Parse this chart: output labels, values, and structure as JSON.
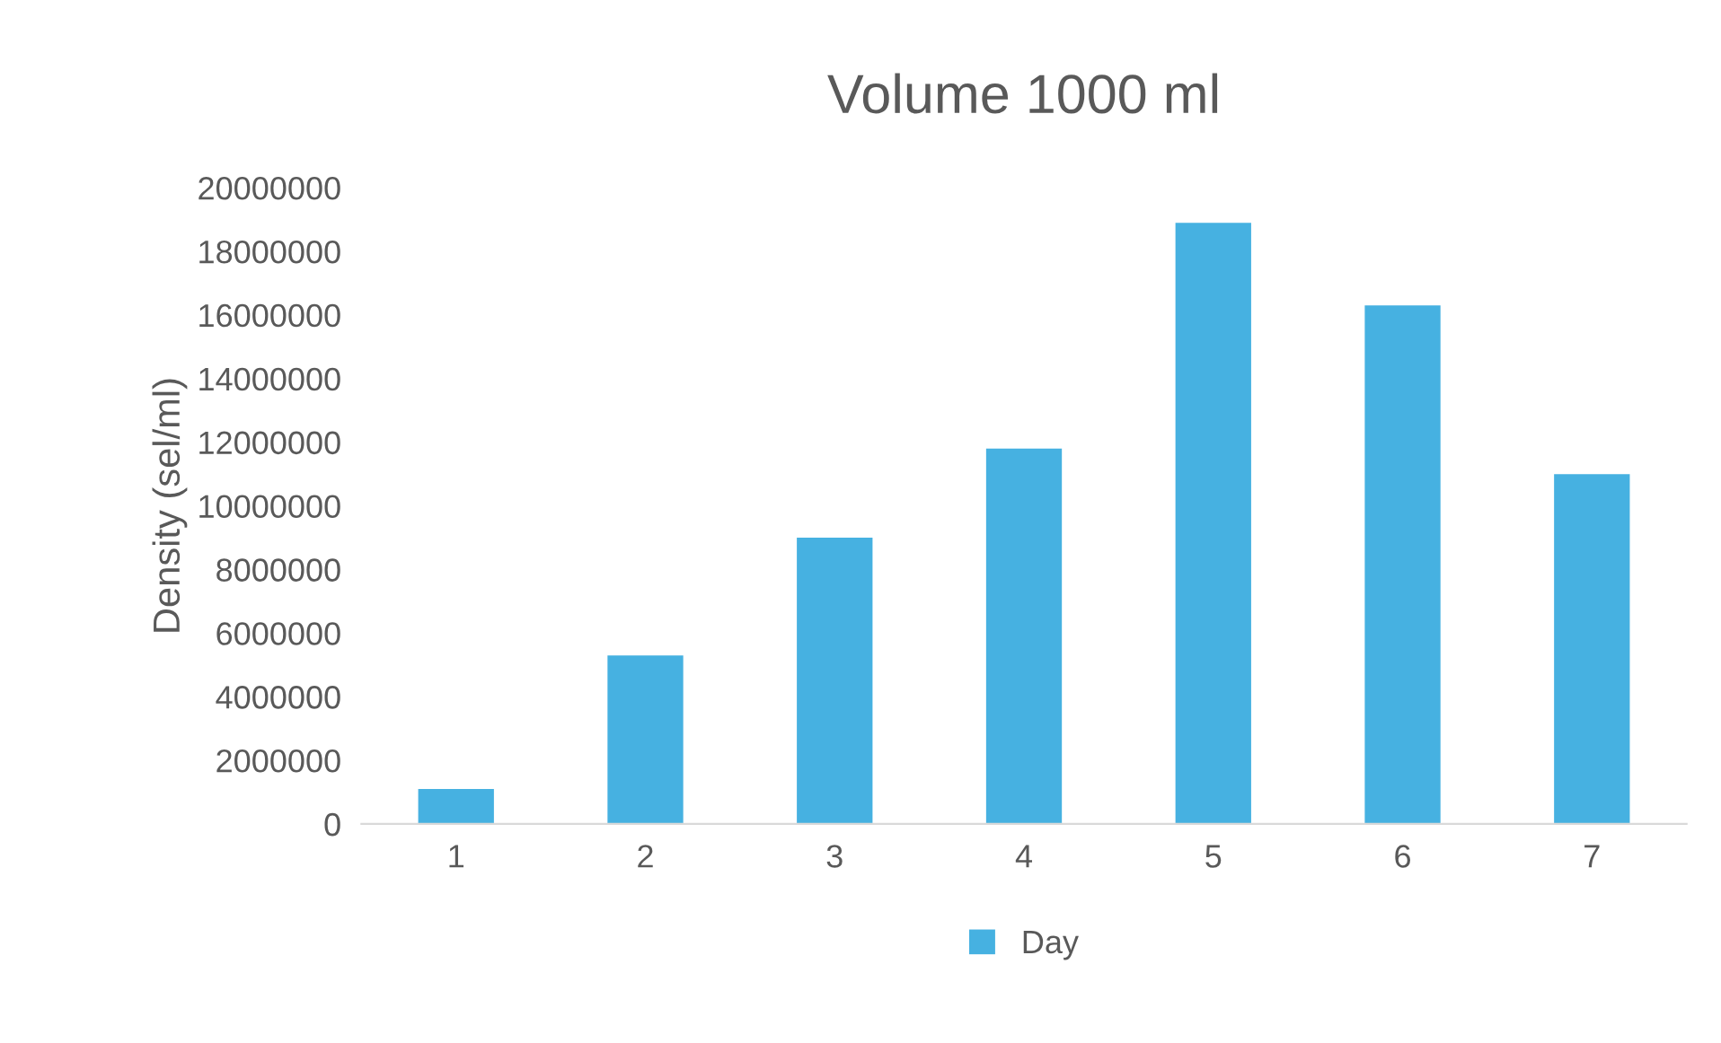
{
  "chart_data": {
    "type": "bar",
    "title": "Volume 1000 ml",
    "ylabel": "Density (sel/ml)",
    "categories": [
      "1",
      "2",
      "3",
      "4",
      "5",
      "6",
      "7"
    ],
    "series": [
      {
        "name": "Day",
        "color": "#46b1e1",
        "values": [
          1100000,
          5300000,
          9000000,
          11800000,
          18900000,
          16300000,
          11000000
        ]
      }
    ],
    "ylim": [
      0,
      20000000
    ],
    "yticks": [
      0,
      2000000,
      4000000,
      6000000,
      8000000,
      10000000,
      12000000,
      14000000,
      16000000,
      18000000,
      20000000
    ],
    "grid": false,
    "legend": "bottom"
  }
}
